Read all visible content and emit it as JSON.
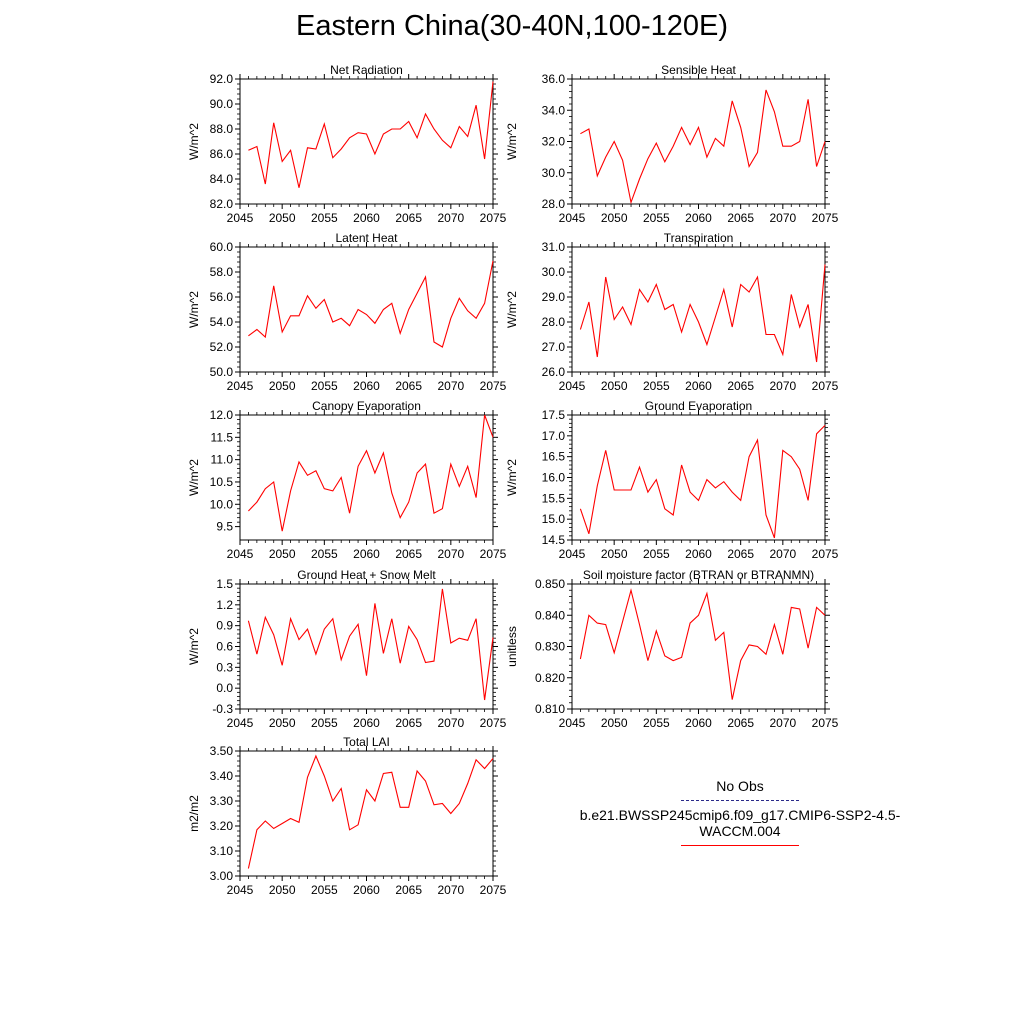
{
  "title": "Eastern China(30-40N,100-120E)",
  "colors": {
    "series": "#ff0000",
    "obs": "#2a2a8a",
    "axis": "#000000"
  },
  "legend": {
    "obs_label": "No Obs",
    "case_label": "b.e21.BWSSP245cmip6.f09_g17.CMIP6-SSP2-4.5-WACCM.004"
  },
  "chart_data": [
    {
      "type": "line",
      "title": "Net Radiation",
      "ylabel": "W/m^2",
      "xlim": [
        2045,
        2075
      ],
      "ylim": [
        82.0,
        92.0
      ],
      "yticks": [
        82.0,
        84.0,
        86.0,
        88.0,
        90.0,
        92.0
      ],
      "ytick_labels": [
        "82.0",
        "84.0",
        "86.0",
        "88.0",
        "90.0",
        "92.0"
      ],
      "xticks": [
        2045,
        2050,
        2055,
        2060,
        2065,
        2070,
        2075
      ],
      "x": [
        2046,
        2047,
        2048,
        2049,
        2050,
        2051,
        2052,
        2053,
        2054,
        2055,
        2056,
        2057,
        2058,
        2059,
        2060,
        2061,
        2062,
        2063,
        2064,
        2065,
        2066,
        2067,
        2068,
        2069,
        2070,
        2071,
        2072,
        2073,
        2074,
        2075
      ],
      "values": [
        86.3,
        86.6,
        83.6,
        88.5,
        85.4,
        86.3,
        83.3,
        86.5,
        86.4,
        88.4,
        85.7,
        86.4,
        87.3,
        87.7,
        87.6,
        86.0,
        87.6,
        88.0,
        88.0,
        88.6,
        87.3,
        89.2,
        88.0,
        87.1,
        86.5,
        88.2,
        87.4,
        89.9,
        85.6,
        91.8
      ],
      "series_name": "b.e21.BWSSP245cmip6.f09_g17.CMIP6-SSP2-4.5-WACCM.004"
    },
    {
      "type": "line",
      "title": "Sensible Heat",
      "ylabel": "W/m^2",
      "xlim": [
        2045,
        2075
      ],
      "ylim": [
        28.0,
        36.0
      ],
      "yticks": [
        28.0,
        30.0,
        32.0,
        34.0,
        36.0
      ],
      "ytick_labels": [
        "28.0",
        "30.0",
        "32.0",
        "34.0",
        "36.0"
      ],
      "xticks": [
        2045,
        2050,
        2055,
        2060,
        2065,
        2070,
        2075
      ],
      "x": [
        2046,
        2047,
        2048,
        2049,
        2050,
        2051,
        2052,
        2053,
        2054,
        2055,
        2056,
        2057,
        2058,
        2059,
        2060,
        2061,
        2062,
        2063,
        2064,
        2065,
        2066,
        2067,
        2068,
        2069,
        2070,
        2071,
        2072,
        2073,
        2074,
        2075
      ],
      "values": [
        32.5,
        32.8,
        29.8,
        31.0,
        32.0,
        30.8,
        28.1,
        29.6,
        30.9,
        31.9,
        30.7,
        31.7,
        32.9,
        31.8,
        32.9,
        31.0,
        32.2,
        31.7,
        34.6,
        32.9,
        30.4,
        31.3,
        35.3,
        33.9,
        31.7,
        31.7,
        32.0,
        34.7,
        30.4,
        32.0
      ]
    },
    {
      "type": "line",
      "title": "Latent Heat",
      "ylabel": "W/m^2",
      "xlim": [
        2045,
        2075
      ],
      "ylim": [
        50.0,
        60.0
      ],
      "yticks": [
        50.0,
        52.0,
        54.0,
        56.0,
        58.0,
        60.0
      ],
      "ytick_labels": [
        "50.0",
        "52.0",
        "54.0",
        "56.0",
        "58.0",
        "60.0"
      ],
      "xticks": [
        2045,
        2050,
        2055,
        2060,
        2065,
        2070,
        2075
      ],
      "x": [
        2046,
        2047,
        2048,
        2049,
        2050,
        2051,
        2052,
        2053,
        2054,
        2055,
        2056,
        2057,
        2058,
        2059,
        2060,
        2061,
        2062,
        2063,
        2064,
        2065,
        2066,
        2067,
        2068,
        2069,
        2070,
        2071,
        2072,
        2073,
        2074,
        2075
      ],
      "values": [
        52.9,
        53.4,
        52.8,
        56.9,
        53.2,
        54.5,
        54.5,
        56.1,
        55.1,
        55.8,
        54.0,
        54.3,
        53.7,
        55.0,
        54.6,
        53.9,
        55.0,
        55.5,
        53.1,
        55.0,
        56.3,
        57.6,
        52.4,
        52.0,
        54.3,
        55.9,
        54.9,
        54.3,
        55.5,
        58.9
      ]
    },
    {
      "type": "line",
      "title": "Transpiration",
      "ylabel": "W/m^2",
      "xlim": [
        2045,
        2075
      ],
      "ylim": [
        26.0,
        31.0
      ],
      "yticks": [
        26.0,
        27.0,
        28.0,
        29.0,
        30.0,
        31.0
      ],
      "ytick_labels": [
        "26.0",
        "27.0",
        "28.0",
        "29.0",
        "30.0",
        "31.0"
      ],
      "xticks": [
        2045,
        2050,
        2055,
        2060,
        2065,
        2070,
        2075
      ],
      "x": [
        2046,
        2047,
        2048,
        2049,
        2050,
        2051,
        2052,
        2053,
        2054,
        2055,
        2056,
        2057,
        2058,
        2059,
        2060,
        2061,
        2062,
        2063,
        2064,
        2065,
        2066,
        2067,
        2068,
        2069,
        2070,
        2071,
        2072,
        2073,
        2074,
        2075
      ],
      "values": [
        27.7,
        28.8,
        26.6,
        29.8,
        28.1,
        28.6,
        27.9,
        29.3,
        28.8,
        29.5,
        28.5,
        28.7,
        27.6,
        28.7,
        28.0,
        27.1,
        28.2,
        29.3,
        27.8,
        29.5,
        29.2,
        29.8,
        27.5,
        27.5,
        26.7,
        29.1,
        27.8,
        28.7,
        26.4,
        30.3
      ]
    },
    {
      "type": "line",
      "title": "Canopy Evaporation",
      "ylabel": "W/m^2",
      "xlim": [
        2045,
        2075
      ],
      "ylim": [
        9.2,
        12.0
      ],
      "yticks": [
        9.5,
        10.0,
        10.5,
        11.0,
        11.5,
        12.0
      ],
      "ytick_labels": [
        "9.5",
        "10.0",
        "10.5",
        "11.0",
        "11.5",
        "12.0"
      ],
      "xticks": [
        2045,
        2050,
        2055,
        2060,
        2065,
        2070,
        2075
      ],
      "x": [
        2046,
        2047,
        2048,
        2049,
        2050,
        2051,
        2052,
        2053,
        2054,
        2055,
        2056,
        2057,
        2058,
        2059,
        2060,
        2061,
        2062,
        2063,
        2064,
        2065,
        2066,
        2067,
        2068,
        2069,
        2070,
        2071,
        2072,
        2073,
        2074,
        2075
      ],
      "values": [
        9.85,
        10.05,
        10.35,
        10.5,
        9.4,
        10.3,
        10.95,
        10.65,
        10.75,
        10.35,
        10.3,
        10.6,
        9.8,
        10.85,
        11.2,
        10.7,
        11.15,
        10.25,
        9.7,
        10.05,
        10.7,
        10.9,
        9.8,
        9.9,
        10.9,
        10.4,
        10.85,
        10.15,
        12.0,
        11.5
      ]
    },
    {
      "type": "line",
      "title": "Ground Evaporation",
      "ylabel": "W/m^2",
      "xlim": [
        2045,
        2075
      ],
      "ylim": [
        14.5,
        17.5
      ],
      "yticks": [
        14.5,
        15.0,
        15.5,
        16.0,
        16.5,
        17.0,
        17.5
      ],
      "ytick_labels": [
        "14.5",
        "15.0",
        "15.5",
        "16.0",
        "16.5",
        "17.0",
        "17.5"
      ],
      "xticks": [
        2045,
        2050,
        2055,
        2060,
        2065,
        2070,
        2075
      ],
      "x": [
        2046,
        2047,
        2048,
        2049,
        2050,
        2051,
        2052,
        2053,
        2054,
        2055,
        2056,
        2057,
        2058,
        2059,
        2060,
        2061,
        2062,
        2063,
        2064,
        2065,
        2066,
        2067,
        2068,
        2069,
        2070,
        2071,
        2072,
        2073,
        2074,
        2075
      ],
      "values": [
        15.25,
        14.65,
        15.8,
        16.65,
        15.7,
        15.7,
        15.7,
        16.25,
        15.65,
        15.95,
        15.25,
        15.1,
        16.3,
        15.65,
        15.45,
        15.95,
        15.75,
        15.9,
        15.65,
        15.45,
        16.5,
        16.9,
        15.1,
        14.55,
        16.65,
        16.5,
        16.2,
        15.45,
        17.05,
        17.25
      ]
    },
    {
      "type": "line",
      "title": "Ground Heat + Snow Melt",
      "ylabel": "W/m^2",
      "xlim": [
        2045,
        2075
      ],
      "ylim": [
        -0.3,
        1.5
      ],
      "yticks": [
        -0.3,
        0.0,
        0.3,
        0.6,
        0.9,
        1.2,
        1.5
      ],
      "ytick_labels": [
        "-0.3",
        "0.0",
        "0.3",
        "0.6",
        "0.9",
        "1.2",
        "1.5"
      ],
      "xticks": [
        2045,
        2050,
        2055,
        2060,
        2065,
        2070,
        2075
      ],
      "x": [
        2046,
        2047,
        2048,
        2049,
        2050,
        2051,
        2052,
        2053,
        2054,
        2055,
        2056,
        2057,
        2058,
        2059,
        2060,
        2061,
        2062,
        2063,
        2064,
        2065,
        2066,
        2067,
        2068,
        2069,
        2070,
        2071,
        2072,
        2073,
        2074,
        2075
      ],
      "values": [
        0.97,
        0.49,
        1.02,
        0.77,
        0.33,
        1.0,
        0.7,
        0.85,
        0.49,
        0.85,
        1.0,
        0.41,
        0.75,
        0.92,
        0.18,
        1.22,
        0.5,
        1.0,
        0.36,
        0.89,
        0.7,
        0.37,
        0.39,
        1.43,
        0.65,
        0.72,
        0.69,
        1.0,
        -0.17,
        0.73
      ]
    },
    {
      "type": "line",
      "title": "Soil moisture factor (BTRAN or BTRANMN)",
      "ylabel": "unitless",
      "xlim": [
        2045,
        2075
      ],
      "ylim": [
        0.81,
        0.85
      ],
      "yticks": [
        0.81,
        0.82,
        0.83,
        0.84,
        0.85
      ],
      "ytick_labels": [
        "0.810",
        "0.820",
        "0.830",
        "0.840",
        "0.850"
      ],
      "xticks": [
        2045,
        2050,
        2055,
        2060,
        2065,
        2070,
        2075
      ],
      "x": [
        2046,
        2047,
        2048,
        2049,
        2050,
        2051,
        2052,
        2053,
        2054,
        2055,
        2056,
        2057,
        2058,
        2059,
        2060,
        2061,
        2062,
        2063,
        2064,
        2065,
        2066,
        2067,
        2068,
        2069,
        2070,
        2071,
        2072,
        2073,
        2074,
        2075
      ],
      "values": [
        0.826,
        0.84,
        0.8375,
        0.837,
        0.828,
        0.838,
        0.848,
        0.837,
        0.8255,
        0.835,
        0.827,
        0.8255,
        0.8265,
        0.8375,
        0.84,
        0.847,
        0.832,
        0.8345,
        0.813,
        0.8255,
        0.8305,
        0.83,
        0.8275,
        0.837,
        0.8275,
        0.8425,
        0.842,
        0.8295,
        0.8425,
        0.84
      ]
    },
    {
      "type": "line",
      "title": "Total LAI",
      "ylabel": "m2/m2",
      "xlim": [
        2045,
        2075
      ],
      "ylim": [
        3.0,
        3.5
      ],
      "yticks": [
        3.0,
        3.1,
        3.2,
        3.3,
        3.4,
        3.5
      ],
      "ytick_labels": [
        "3.00",
        "3.10",
        "3.20",
        "3.30",
        "3.40",
        "3.50"
      ],
      "xticks": [
        2045,
        2050,
        2055,
        2060,
        2065,
        2070,
        2075
      ],
      "x": [
        2046,
        2047,
        2048,
        2049,
        2050,
        2051,
        2052,
        2053,
        2054,
        2055,
        2056,
        2057,
        2058,
        2059,
        2060,
        2061,
        2062,
        2063,
        2064,
        2065,
        2066,
        2067,
        2068,
        2069,
        2070,
        2071,
        2072,
        2073,
        2074,
        2075
      ],
      "values": [
        3.03,
        3.185,
        3.22,
        3.19,
        3.21,
        3.23,
        3.215,
        3.395,
        3.48,
        3.4,
        3.3,
        3.35,
        3.185,
        3.205,
        3.345,
        3.3,
        3.41,
        3.415,
        3.275,
        3.275,
        3.42,
        3.38,
        3.285,
        3.29,
        3.25,
        3.29,
        3.37,
        3.465,
        3.43,
        3.47
      ]
    }
  ]
}
